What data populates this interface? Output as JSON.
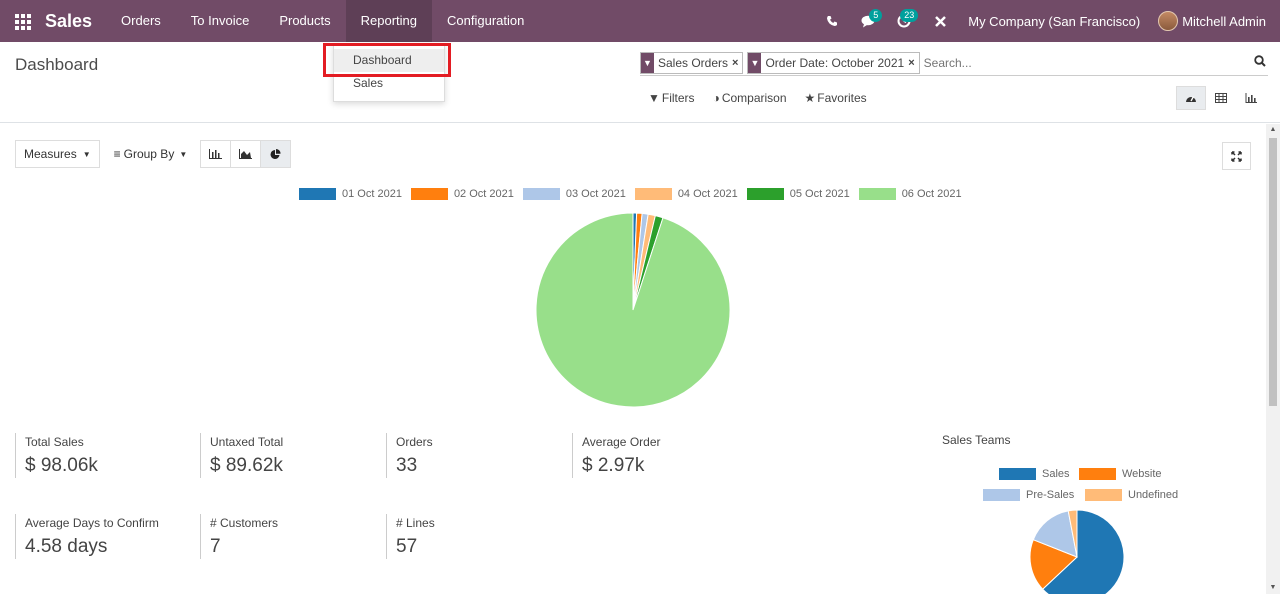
{
  "navbar": {
    "app_title": "Sales",
    "menu": [
      "Orders",
      "To Invoice",
      "Products",
      "Reporting",
      "Configuration"
    ],
    "chat_badge": "5",
    "activity_badge": "23",
    "company": "My Company (San Francisco)",
    "user": "Mitchell Admin"
  },
  "dropdown": {
    "items": [
      "Dashboard",
      "Sales"
    ]
  },
  "control_panel": {
    "breadcrumb": "Dashboard",
    "facets": [
      "Sales Orders",
      "Order Date: October 2021"
    ],
    "facet_close": "×",
    "search_placeholder": "Search...",
    "filters_label": "Filters",
    "comparison_label": "Comparison",
    "favorites_label": "Favorites"
  },
  "toolbar": {
    "measures_label": "Measures",
    "groupby_label": "Group By"
  },
  "colors": {
    "brand": "#714b67",
    "series": [
      "#1f77b4",
      "#ff7f0e",
      "#aec7e8",
      "#ffbb78",
      "#2ca02c",
      "#98df8a"
    ]
  },
  "chart_data": [
    {
      "type": "pie",
      "categories": [
        "01 Oct 2021",
        "02 Oct 2021",
        "03 Oct 2021",
        "04 Oct 2021",
        "05 Oct 2021",
        "06 Oct 2021"
      ],
      "values": [
        0.6,
        0.9,
        1.0,
        1.2,
        1.3,
        95.0
      ],
      "legend": "top"
    },
    {
      "type": "pie",
      "title": "Sales Teams",
      "categories": [
        "Sales",
        "Website",
        "Pre-Sales",
        "Undefined"
      ],
      "values": [
        63,
        18,
        16,
        3
      ],
      "colors": [
        "#1f77b4",
        "#ff7f0e",
        "#aec7e8",
        "#ffbb78"
      ],
      "legend": "top"
    }
  ],
  "kpis": [
    {
      "label": "Total Sales",
      "value": "$ 98.06k"
    },
    {
      "label": "Untaxed Total",
      "value": "$ 89.62k"
    },
    {
      "label": "Orders",
      "value": "33"
    },
    {
      "label": "Average Order",
      "value": "$ 2.97k"
    },
    {
      "label": "Average Days to Confirm",
      "value": "4.58 days"
    },
    {
      "label": "# Customers",
      "value": "7"
    },
    {
      "label": "# Lines",
      "value": "57"
    }
  ]
}
